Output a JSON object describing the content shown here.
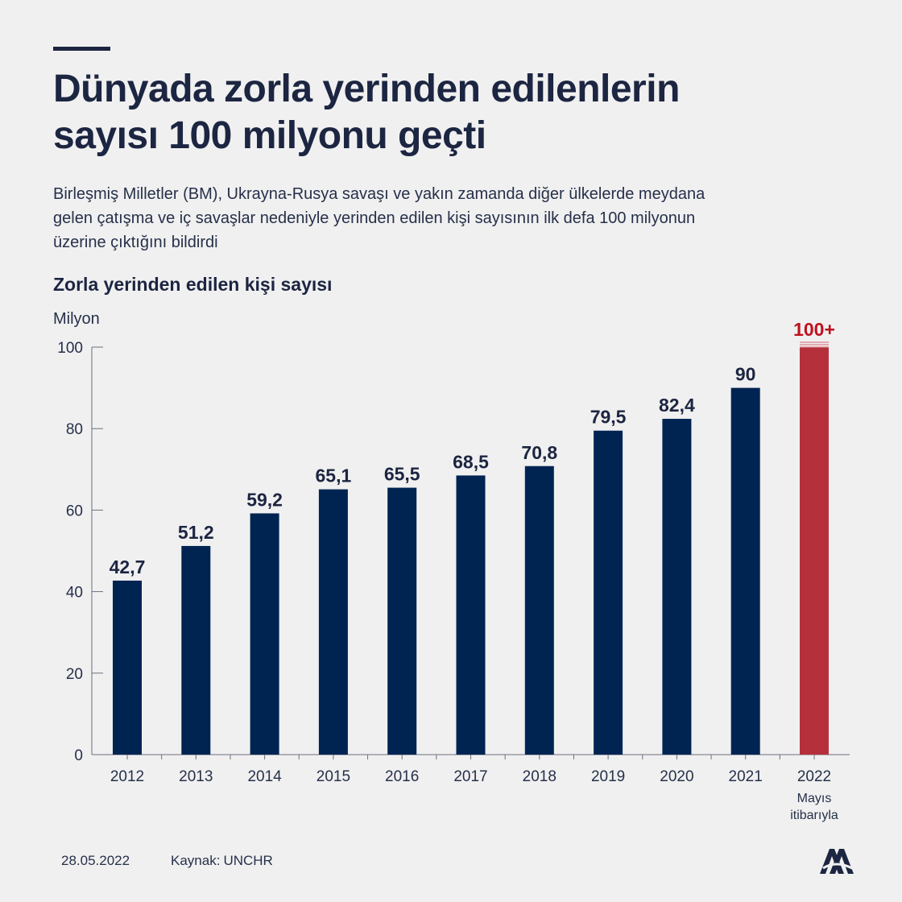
{
  "title_lines": [
    "Dünyada zorla yerinden edilenlerin",
    "sayısı 100 milyonu geçti"
  ],
  "subtitle_lines": [
    "Birleşmiş Milletler (BM), Ukrayna-Rusya savaşı ve yakın zamanda diğer ülkelerde meydana",
    "gelen çatışma ve iç savaşlar nedeniyle yerinden edilen kişi sayısının ilk defa 100 milyonun",
    "üzerine çıktığını bildirdi"
  ],
  "footer": {
    "date": "28.05.2022",
    "source_label": "Kaynak:",
    "source": "UNCHR"
  },
  "logo_name": "aa-logo",
  "chart_data": {
    "type": "bar",
    "title": "Zorla yerinden edilen kişi sayısı",
    "ylabel": "Milyon",
    "xlabel": "",
    "ylim": [
      0,
      100
    ],
    "yticks": [
      0,
      20,
      40,
      60,
      80,
      100
    ],
    "categories": [
      "2012",
      "2013",
      "2014",
      "2015",
      "2016",
      "2017",
      "2018",
      "2019",
      "2020",
      "2021",
      "2022"
    ],
    "values": [
      42.7,
      51.2,
      59.2,
      65.1,
      65.5,
      68.5,
      70.8,
      79.5,
      82.4,
      90,
      100
    ],
    "labels": [
      "42,7",
      "51,2",
      "59,2",
      "65,1",
      "65,5",
      "68,5",
      "70,8",
      "79,5",
      "82,4",
      "90",
      "100+"
    ],
    "highlight_index": 10,
    "highlight_note_lines": [
      "Mayıs",
      "itibarıyla"
    ],
    "colors": {
      "bar": "#002452",
      "highlight": "#b5303a",
      "highlight_label": "#c0111f",
      "label": "#1c2541",
      "axis": "#6b7080"
    }
  }
}
